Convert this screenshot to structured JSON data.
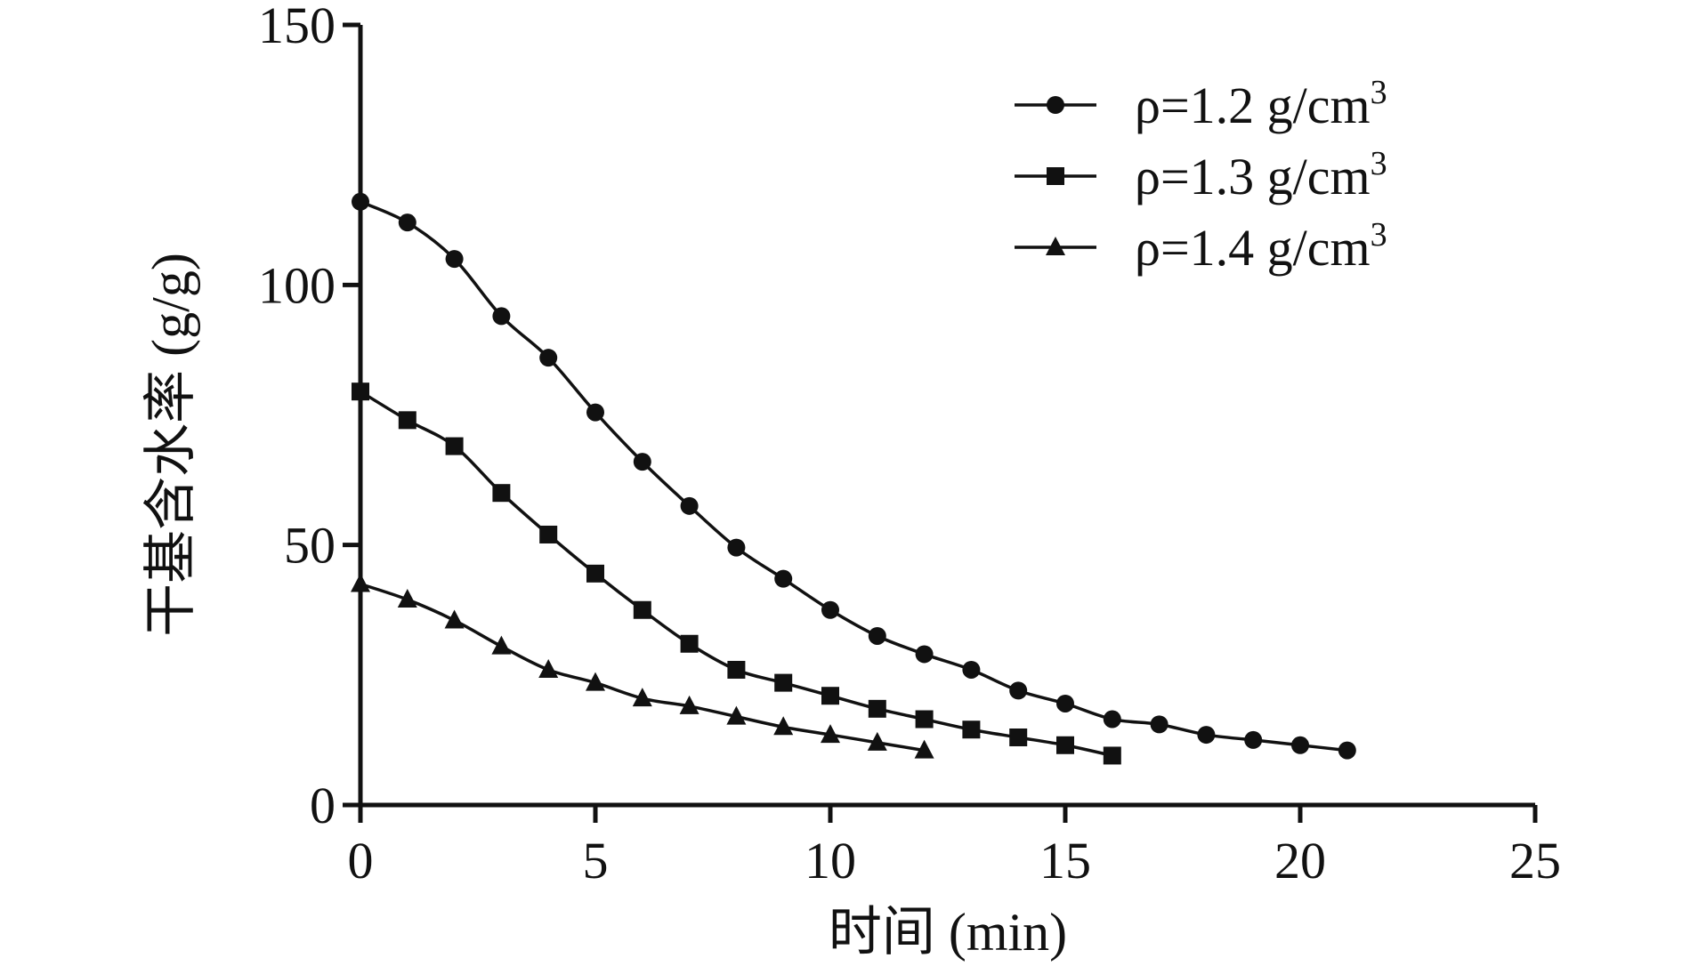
{
  "chart_data": {
    "type": "line",
    "xlabel": "时间 (min)",
    "ylabel": "干基含水率 (g/g)",
    "xlim": [
      0,
      25
    ],
    "ylim": [
      0,
      150
    ],
    "xticks": [
      0,
      5,
      10,
      15,
      20,
      25
    ],
    "yticks": [
      0,
      50,
      100,
      150
    ],
    "grid": false,
    "legend_position": "top-right",
    "series": [
      {
        "name_prefix": "ρ=1.2 g/cm",
        "name_sup": "3",
        "marker": "circle",
        "color": "#111111",
        "x": [
          0,
          1,
          2,
          3,
          4,
          5,
          6,
          7,
          8,
          9,
          10,
          11,
          12,
          13,
          14,
          15,
          16,
          17,
          18,
          19,
          20,
          21
        ],
        "y": [
          116,
          112,
          105,
          94,
          86,
          75.5,
          66,
          57.5,
          49.5,
          43.5,
          37.5,
          32.5,
          29,
          26,
          22,
          19.5,
          16.5,
          15.5,
          13.5,
          12.5,
          11.5,
          10.5
        ]
      },
      {
        "name_prefix": "ρ=1.3 g/cm",
        "name_sup": "3",
        "marker": "square",
        "color": "#111111",
        "x": [
          0,
          1,
          2,
          3,
          4,
          5,
          6,
          7,
          8,
          9,
          10,
          11,
          12,
          13,
          14,
          15,
          16
        ],
        "y": [
          79.5,
          74,
          69,
          60,
          52,
          44.5,
          37.5,
          31,
          26,
          23.5,
          21,
          18.5,
          16.5,
          14.5,
          13,
          11.5,
          9.5
        ]
      },
      {
        "name_prefix": "ρ=1.4 g/cm",
        "name_sup": "3",
        "marker": "triangle",
        "color": "#111111",
        "x": [
          0,
          1,
          2,
          3,
          4,
          5,
          6,
          7,
          8,
          9,
          10,
          11,
          12
        ],
        "y": [
          42.5,
          39.5,
          35.5,
          30.5,
          26,
          23.5,
          20.5,
          19,
          17,
          15,
          13.5,
          12,
          10.5
        ]
      }
    ]
  }
}
